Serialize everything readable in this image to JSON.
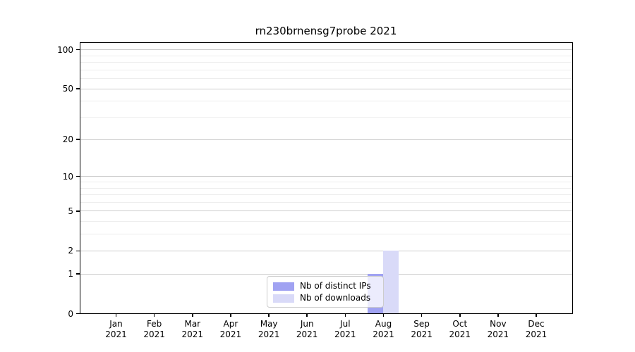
{
  "figure_title": "rn230brnensg7probe 2021",
  "chart_data": {
    "type": "bar",
    "title": "rn230brnensg7probe 2021",
    "xlabel": "",
    "ylabel": "",
    "yscale": "log-like (log10(1+v), symlog with 0 shown)",
    "ylim": [
      0,
      110
    ],
    "grid": "horizontal major + faint minor lines",
    "legend_position": "inside plot, lower center (overlapping Aug bars)",
    "categories": [
      "Jan 2021",
      "Feb 2021",
      "Mar 2021",
      "Apr 2021",
      "May 2021",
      "Jun 2021",
      "Jul 2021",
      "Aug 2021",
      "Sep 2021",
      "Oct 2021",
      "Nov 2021",
      "Dec 2021"
    ],
    "x_tick_month": [
      "Jan",
      "Feb",
      "Mar",
      "Apr",
      "May",
      "Jun",
      "Jul",
      "Aug",
      "Sep",
      "Oct",
      "Nov",
      "Dec"
    ],
    "x_tick_year": "2021",
    "y_major_ticks": [
      0,
      1,
      2,
      5,
      10,
      20,
      50,
      100
    ],
    "y_minor_ticks": [
      3,
      4,
      6,
      7,
      8,
      9,
      30,
      40,
      60,
      70,
      80,
      90
    ],
    "series": [
      {
        "name": "Nb of distinct IPs",
        "color": "#a0a2f2",
        "values": [
          0,
          0,
          0,
          0,
          0,
          0,
          0,
          1,
          0,
          0,
          0,
          0
        ]
      },
      {
        "name": "Nb of downloads",
        "color": "#d9daf8",
        "values": [
          0,
          0,
          0,
          0,
          0,
          0,
          0,
          2,
          0,
          0,
          0,
          0
        ]
      }
    ]
  },
  "colors": {
    "major_grid": "#cccccc",
    "minor_grid": "#ededed",
    "spine": "#000000",
    "legend_border": "#cccccc",
    "background": "#ffffff"
  }
}
